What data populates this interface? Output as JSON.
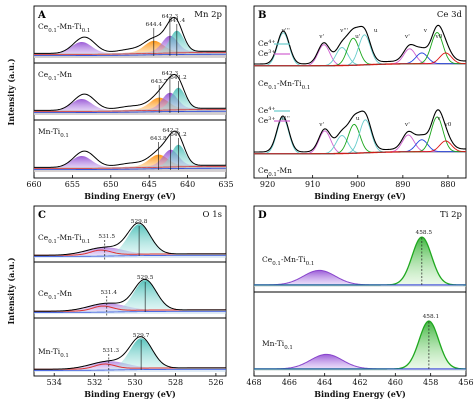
{
  "chart_data": [
    {
      "id": "A",
      "type": "line",
      "panel_label": "A",
      "title": "Mn 2p",
      "xlabel": "Binding Energy (eV)",
      "ylabel": "Intensity (a.u.)",
      "xlim": [
        660,
        635
      ],
      "xticks": [
        660,
        655,
        650,
        645,
        640,
        635
      ],
      "stacks": [
        {
          "name": "Ce0.1-Mn-Ti0.1",
          "peaks": [
            {
              "label": "644.4",
              "x": 644.4
            },
            {
              "label": "642.3",
              "x": 642.3
            },
            {
              "label": "641.4",
              "x": 641.4
            }
          ]
        },
        {
          "name": "Ce0.1-Mn",
          "peaks": [
            {
              "label": "643.7",
              "x": 643.7
            },
            {
              "label": "642.3",
              "x": 642.3
            },
            {
              "label": "641.2",
              "x": 641.2
            }
          ]
        },
        {
          "name": "Mn-Ti0.1",
          "peaks": [
            {
              "label": "643.8",
              "x": 643.8
            },
            {
              "label": "642.2",
              "x": 642.2
            },
            {
              "label": "641.2",
              "x": 641.2
            }
          ]
        }
      ]
    },
    {
      "id": "B",
      "type": "line",
      "panel_label": "B",
      "title": "Ce 3d",
      "xlabel": "Binding Energy (eV)",
      "ylabel": "",
      "xlim": [
        923,
        876
      ],
      "xticks": [
        920,
        910,
        900,
        890,
        880
      ],
      "stacks": [
        {
          "name": "Ce0.1-Mn-Ti0.1",
          "legend": [
            "Ce4+",
            "Ce3+"
          ],
          "peak_labels": [
            "u'''",
            "v'",
            "v'''",
            "u'",
            "u",
            "v'",
            "v",
            "v0"
          ]
        },
        {
          "name": "Ce0.1-Mn",
          "legend": [
            "Ce4+",
            "Ce3+"
          ],
          "peak_labels": [
            "u'''",
            "v'",
            "u",
            "v'",
            "v",
            "v0"
          ]
        }
      ]
    },
    {
      "id": "C",
      "type": "line",
      "panel_label": "C",
      "title": "O 1s",
      "xlabel": "Binding Energy (eV)",
      "ylabel": "Intensity (a.u.)",
      "xlim": [
        535,
        525.5
      ],
      "xticks": [
        534,
        532,
        530,
        528,
        526
      ],
      "stacks": [
        {
          "name": "Ce0.1-Mn-Ti0.1",
          "peaks": [
            {
              "label": "531.5",
              "x": 531.5
            },
            {
              "label": "529.8",
              "x": 529.8
            }
          ]
        },
        {
          "name": "Ce0.1-Mn",
          "peaks": [
            {
              "label": "531.4",
              "x": 531.4
            },
            {
              "label": "529.5",
              "x": 529.5
            }
          ]
        },
        {
          "name": "Mn-Ti0.1",
          "peaks": [
            {
              "label": "531.3",
              "x": 531.3
            },
            {
              "label": "529.7",
              "x": 529.7
            }
          ]
        }
      ]
    },
    {
      "id": "D",
      "type": "line",
      "panel_label": "D",
      "title": "Ti 2p",
      "xlabel": "Binding Energy (eV)",
      "ylabel": "",
      "xlim": [
        468,
        456
      ],
      "xticks": [
        468,
        466,
        464,
        462,
        460,
        458,
        456
      ],
      "stacks": [
        {
          "name": "Ce0.1-Mn-Ti0.1",
          "peaks": [
            {
              "label": "458.5",
              "x": 458.5
            }
          ]
        },
        {
          "name": "Mn-Ti0.1",
          "peaks": [
            {
              "label": "458.1",
              "x": 458.1
            }
          ]
        }
      ]
    }
  ],
  "colors": {
    "envelope": "#000000",
    "background": "#e8c080",
    "baseline_blue": "#2244dd",
    "baseline_red": "#dd1111",
    "mn_peak_a": "#ff8c00",
    "mn_peak_b": "#8a2be2",
    "mn_peak_c": "#00a8a8",
    "ce_green": "#1aa61a",
    "ce_magenta": "#d060d0",
    "ce_cyan": "#66cccc",
    "o_lattice": "#5cc8c0",
    "o_adsorbed": "#dd3333",
    "ti_green": "#1fa81f",
    "ti_purple": "#8844cc"
  }
}
